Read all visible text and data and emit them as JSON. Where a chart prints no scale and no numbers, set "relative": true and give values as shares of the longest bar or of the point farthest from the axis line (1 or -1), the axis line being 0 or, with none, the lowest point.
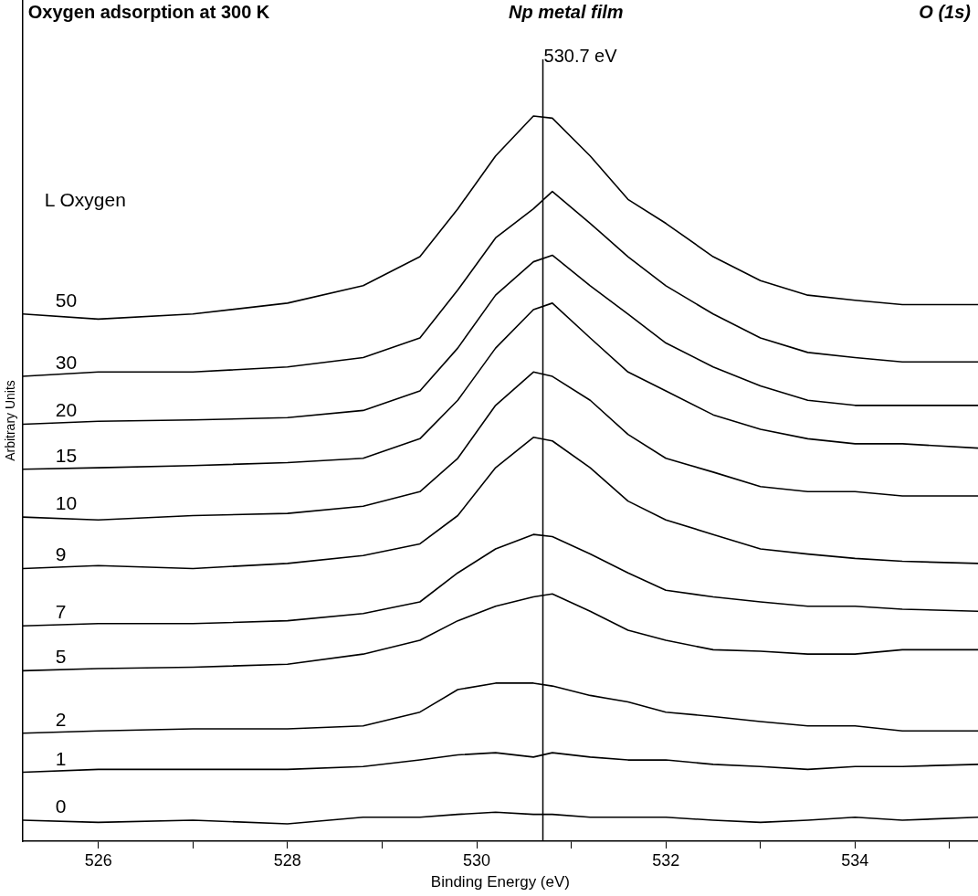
{
  "chart_data": {
    "type": "line",
    "title": "Oxygen adsorption at 300 K",
    "subtitle": "Np metal film",
    "annotations": [
      "O (1s)"
    ],
    "xlabel": "Binding Energy (eV)",
    "ylabel": "Arbitrary Units",
    "legend_title": "L Oxygen",
    "relative": true,
    "grid": false,
    "legend": false,
    "marker": "none",
    "line_style": "solid",
    "x": [
      525.2,
      526,
      527,
      528,
      528.8,
      529.4,
      529.8,
      530.2,
      530.6,
      530.8,
      531.2,
      531.6,
      532,
      532.5,
      533,
      533.5,
      534,
      534.5,
      535.3
    ],
    "xlim": [
      525.2,
      535.3
    ],
    "xticks": [
      526,
      {
        "value": 527,
        "label": null
      },
      528,
      {
        "value": 529,
        "label": null
      },
      530,
      {
        "value": 531,
        "label": null
      },
      532,
      {
        "value": 533,
        "label": null
      },
      534,
      {
        "value": 535,
        "label": null
      }
    ],
    "ref_lines": [
      {
        "axis": "x",
        "value": 530.7,
        "label": "530.7 eV",
        "color": "#000000"
      }
    ],
    "series": [
      {
        "name": "50",
        "color": "#000000",
        "values": [
          0.727,
          0.72,
          0.727,
          0.742,
          0.766,
          0.806,
          0.872,
          0.945,
          1.0,
          0.997,
          0.945,
          0.885,
          0.852,
          0.806,
          0.773,
          0.753,
          0.746,
          0.74,
          0.74
        ]
      },
      {
        "name": "30",
        "color": "#000000",
        "values": [
          0.641,
          0.647,
          0.647,
          0.654,
          0.667,
          0.694,
          0.76,
          0.832,
          0.872,
          0.896,
          0.852,
          0.806,
          0.766,
          0.727,
          0.694,
          0.674,
          0.667,
          0.661,
          0.661
        ]
      },
      {
        "name": "20",
        "color": "#000000",
        "values": [
          0.575,
          0.579,
          0.581,
          0.584,
          0.594,
          0.621,
          0.68,
          0.753,
          0.799,
          0.808,
          0.766,
          0.727,
          0.687,
          0.654,
          0.628,
          0.608,
          0.601,
          0.601,
          0.601
        ]
      },
      {
        "name": "15",
        "color": "#000000",
        "values": [
          0.513,
          0.515,
          0.518,
          0.522,
          0.528,
          0.555,
          0.608,
          0.68,
          0.733,
          0.742,
          0.694,
          0.647,
          0.621,
          0.588,
          0.568,
          0.555,
          0.548,
          0.548,
          0.542
        ]
      },
      {
        "name": "10",
        "color": "#000000",
        "values": [
          0.447,
          0.443,
          0.449,
          0.452,
          0.462,
          0.482,
          0.528,
          0.601,
          0.647,
          0.641,
          0.608,
          0.561,
          0.528,
          0.509,
          0.489,
          0.482,
          0.482,
          0.476,
          0.476
        ]
      },
      {
        "name": "9",
        "color": "#000000",
        "values": [
          0.376,
          0.38,
          0.376,
          0.383,
          0.394,
          0.41,
          0.449,
          0.515,
          0.557,
          0.552,
          0.515,
          0.469,
          0.443,
          0.423,
          0.403,
          0.396,
          0.39,
          0.386,
          0.383
        ]
      },
      {
        "name": "7",
        "color": "#000000",
        "values": [
          0.297,
          0.3,
          0.3,
          0.304,
          0.314,
          0.33,
          0.37,
          0.403,
          0.423,
          0.42,
          0.396,
          0.37,
          0.346,
          0.337,
          0.33,
          0.324,
          0.324,
          0.32,
          0.317
        ]
      },
      {
        "name": "5",
        "color": "#000000",
        "values": [
          0.235,
          0.238,
          0.24,
          0.244,
          0.258,
          0.277,
          0.304,
          0.324,
          0.337,
          0.341,
          0.317,
          0.291,
          0.277,
          0.264,
          0.262,
          0.258,
          0.258,
          0.264,
          0.264
        ]
      },
      {
        "name": "2",
        "color": "#000000",
        "values": [
          0.149,
          0.152,
          0.155,
          0.155,
          0.159,
          0.178,
          0.209,
          0.218,
          0.218,
          0.214,
          0.201,
          0.192,
          0.178,
          0.172,
          0.165,
          0.159,
          0.159,
          0.152,
          0.152
        ]
      },
      {
        "name": "1",
        "color": "#000000",
        "values": [
          0.095,
          0.099,
          0.099,
          0.099,
          0.103,
          0.112,
          0.119,
          0.122,
          0.116,
          0.122,
          0.116,
          0.112,
          0.112,
          0.106,
          0.103,
          0.099,
          0.103,
          0.103,
          0.106
        ]
      },
      {
        "name": "0",
        "color": "#000000",
        "values": [
          0.029,
          0.026,
          0.029,
          0.024,
          0.033,
          0.033,
          0.037,
          0.04,
          0.037,
          0.037,
          0.033,
          0.033,
          0.033,
          0.029,
          0.026,
          0.029,
          0.033,
          0.029,
          0.033
        ]
      }
    ]
  }
}
